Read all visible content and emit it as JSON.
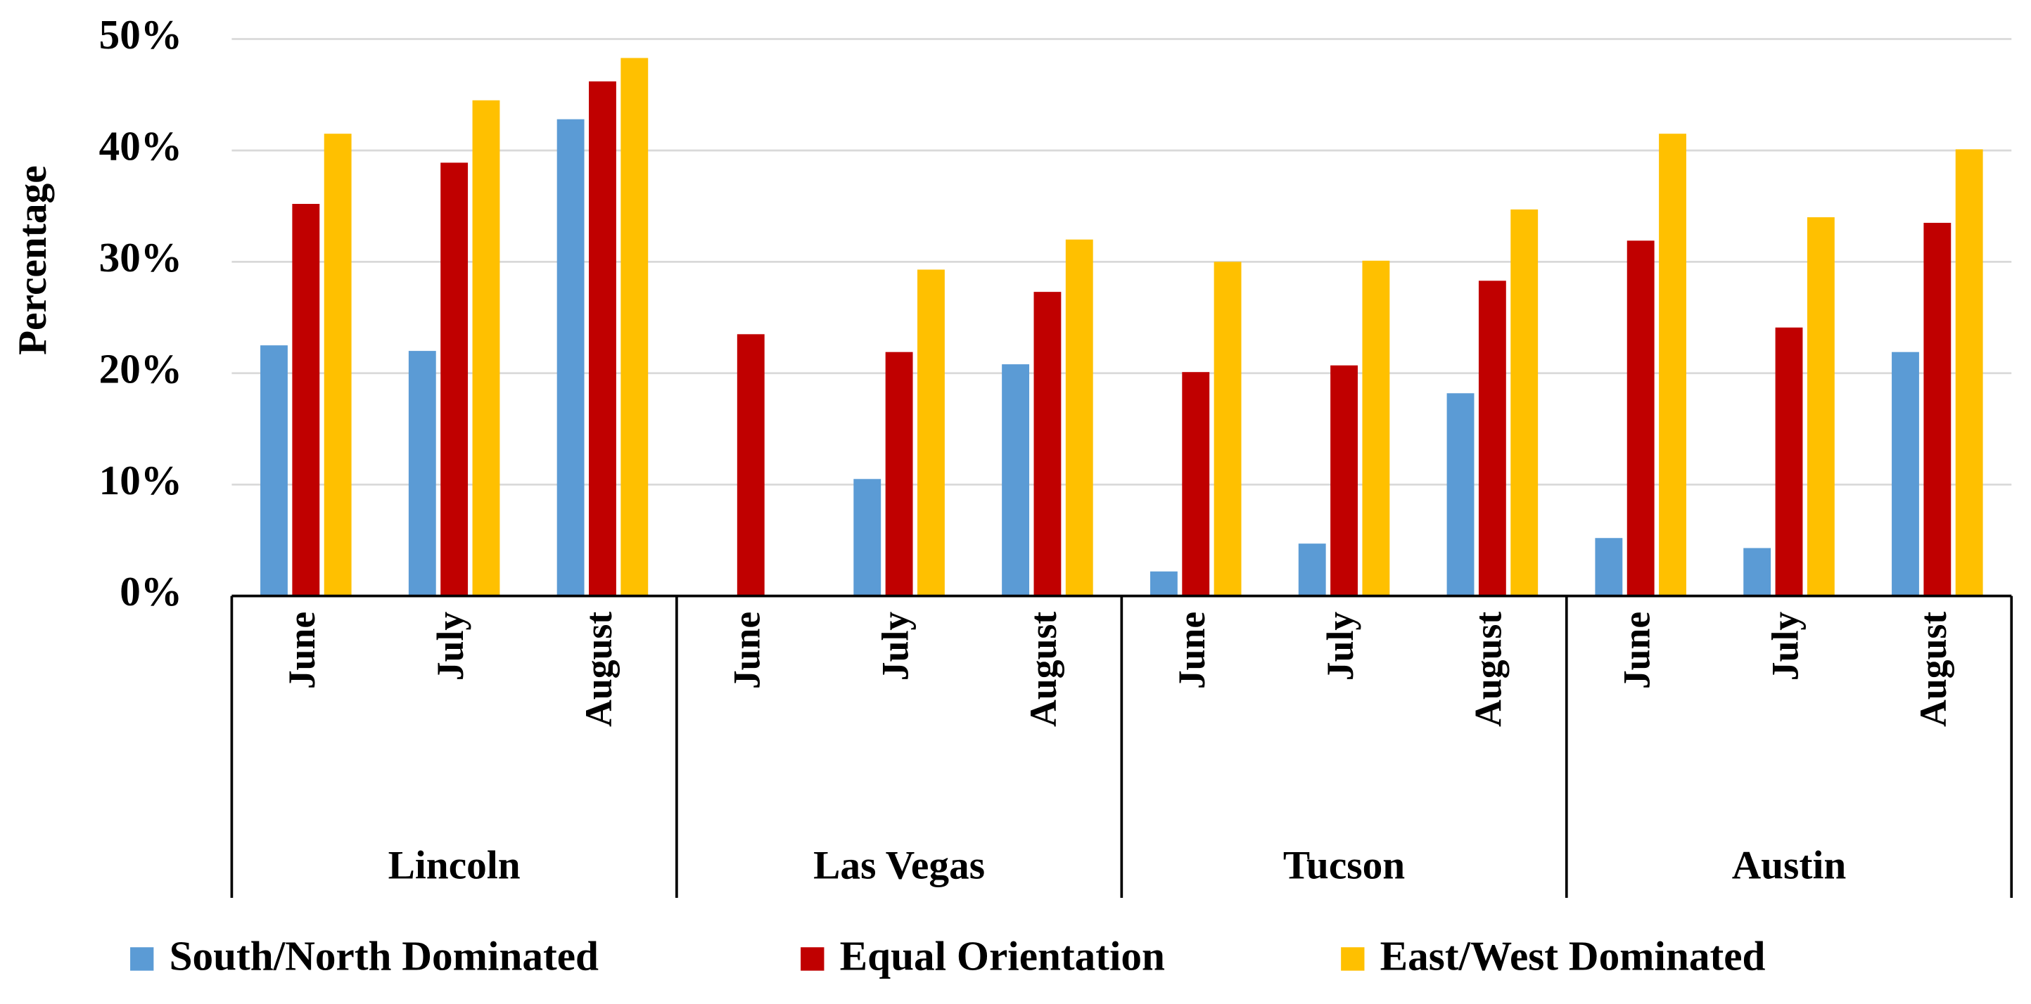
{
  "chart_data": {
    "type": "bar",
    "y_label": "Percentage",
    "categories": [
      "June",
      "July",
      "August",
      "June",
      "July",
      "August",
      "June",
      "July",
      "August",
      "June",
      "July",
      "August"
    ],
    "groups": [
      "Lincoln",
      "Las Vegas",
      "Tucson",
      "Austin"
    ],
    "series": [
      {
        "name": "South/North Dominated",
        "color": "#5b9bd5",
        "values": [
          22.5,
          22.0,
          42.8,
          0,
          10.5,
          20.8,
          2.2,
          4.7,
          18.2,
          5.2,
          4.3,
          21.9
        ]
      },
      {
        "name": "Equal Orientation",
        "color": "#c00000",
        "values": [
          35.2,
          38.9,
          46.2,
          23.5,
          21.9,
          27.3,
          20.1,
          20.7,
          28.3,
          31.9,
          24.1,
          33.5
        ]
      },
      {
        "name": "East/West Dominated",
        "color": "#ffc000",
        "values": [
          41.5,
          44.5,
          48.3,
          0,
          29.3,
          32.0,
          30.0,
          30.1,
          34.7,
          41.5,
          34.0,
          40.1
        ]
      }
    ],
    "ylim": [
      0,
      50
    ],
    "yticks": [
      {
        "value": 0,
        "label": "0%"
      },
      {
        "value": 10,
        "label": "10%"
      },
      {
        "value": 20,
        "label": "20%"
      },
      {
        "value": 30,
        "label": "30%"
      },
      {
        "value": 40,
        "label": "40%"
      },
      {
        "value": 50,
        "label": "50%"
      }
    ],
    "grid": true,
    "legend": "bottom"
  }
}
